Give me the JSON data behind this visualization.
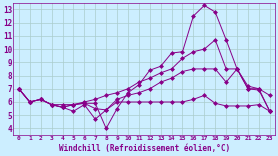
{
  "title": "Windchill (Refroidissement éolien,°C)",
  "bg_color": "#cceeff",
  "grid_color": "#aacccc",
  "line_color": "#880088",
  "markersize": 2.5,
  "xlim": [
    -0.5,
    23.5
  ],
  "ylim": [
    3.5,
    13.5
  ],
  "xticks": [
    0,
    1,
    2,
    3,
    4,
    5,
    6,
    7,
    8,
    9,
    10,
    11,
    12,
    13,
    14,
    15,
    16,
    17,
    18,
    19,
    20,
    21,
    22,
    23
  ],
  "yticks": [
    4,
    5,
    6,
    7,
    8,
    9,
    10,
    11,
    12,
    13
  ],
  "series": [
    [
      7.0,
      6.0,
      6.2,
      5.8,
      5.6,
      5.8,
      5.9,
      5.9,
      4.0,
      5.5,
      6.7,
      7.3,
      8.4,
      8.7,
      9.7,
      9.8,
      12.5,
      13.3,
      12.8,
      10.7,
      8.5,
      7.0,
      6.9,
      5.3
    ],
    [
      7.0,
      6.0,
      6.2,
      5.8,
      5.6,
      5.8,
      6.0,
      6.2,
      6.5,
      6.7,
      7.0,
      7.5,
      7.8,
      8.2,
      8.5,
      9.3,
      9.8,
      10.0,
      10.7,
      8.5,
      8.5,
      7.2,
      7.0,
      6.5
    ],
    [
      7.0,
      6.0,
      6.2,
      5.8,
      5.8,
      5.8,
      5.9,
      5.5,
      5.4,
      6.0,
      6.0,
      6.0,
      6.0,
      6.0,
      6.0,
      6.0,
      6.2,
      6.5,
      5.9,
      5.7,
      5.7,
      5.7,
      5.8,
      5.3
    ],
    [
      7.0,
      6.0,
      6.2,
      5.8,
      5.6,
      5.3,
      5.8,
      4.7,
      5.4,
      6.2,
      6.5,
      6.7,
      7.0,
      7.5,
      7.8,
      8.3,
      8.5,
      8.5,
      8.5,
      7.5,
      8.5,
      7.0,
      7.0,
      5.3
    ]
  ]
}
